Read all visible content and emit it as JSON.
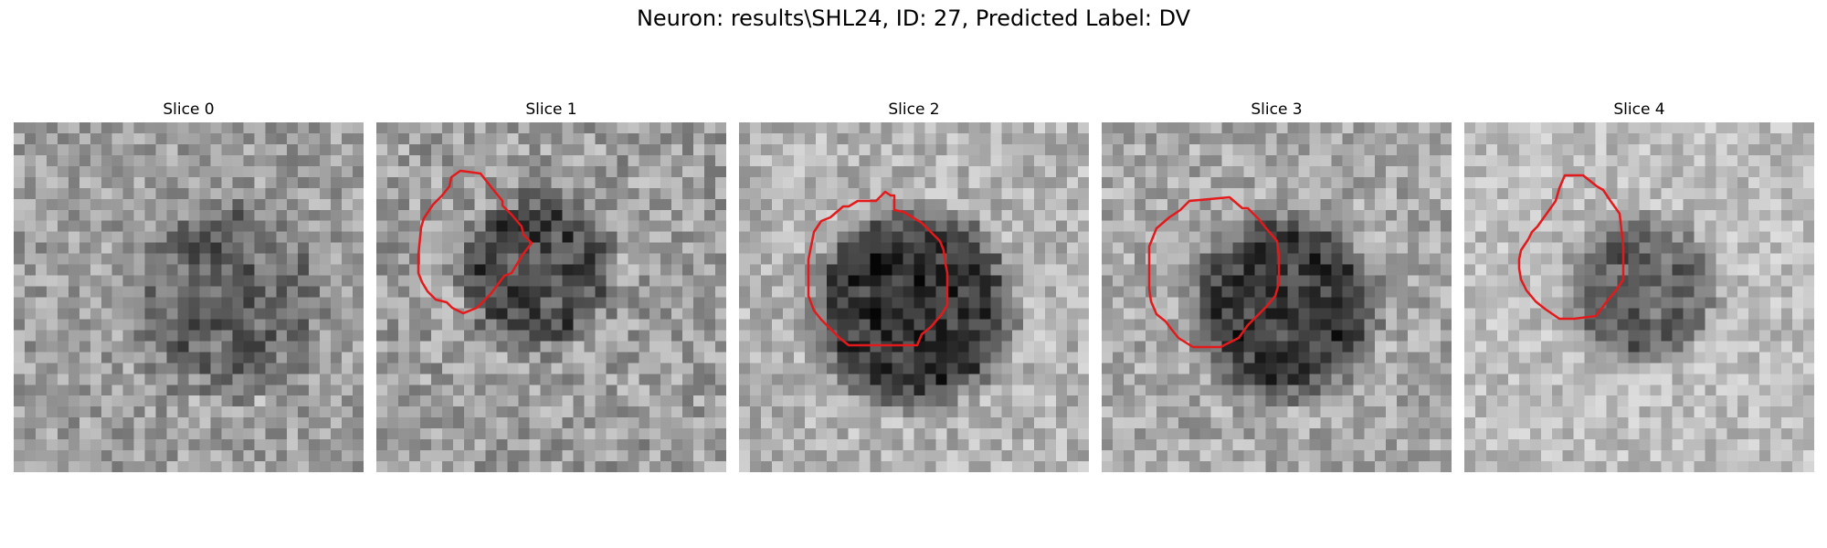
{
  "figure": {
    "title": "Neuron: results\\SHL24, ID: 27, Predicted Label: DV"
  },
  "contour_color": "#e31a1c",
  "colormap": "gray",
  "slices": [
    {
      "title": "Slice 0",
      "has_contour": false
    },
    {
      "title": "Slice 1",
      "has_contour": true
    },
    {
      "title": "Slice 2",
      "has_contour": true
    },
    {
      "title": "Slice 3",
      "has_contour": true
    },
    {
      "title": "Slice 4",
      "has_contour": true
    }
  ]
}
